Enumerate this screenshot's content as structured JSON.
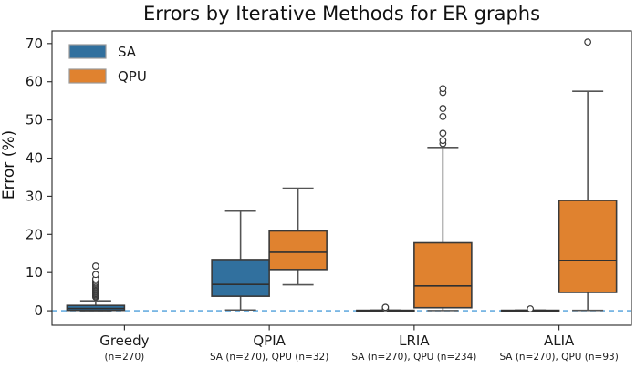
{
  "chart_data": {
    "type": "boxplot",
    "title": "Errors by Iterative Methods for ER graphs",
    "ylabel": "Error (%)",
    "yticks": [
      0,
      10,
      20,
      30,
      40,
      50,
      60,
      70
    ],
    "ylim": [
      -3.8,
      73.3
    ],
    "grid": false,
    "zero_line": {
      "y": 0,
      "style": "dashed",
      "color": "#4F9FDB"
    },
    "legend": {
      "position": "upper-left",
      "entries": [
        {
          "label": "SA",
          "color": "#31709E"
        },
        {
          "label": "QPU",
          "color": "#E0822F"
        }
      ]
    },
    "colors": {
      "box_edge": "#3A3A3A",
      "whisker": "#555555",
      "median": "#303030",
      "frame": "#262626",
      "outlier_edge": "#3A3A3A"
    },
    "categories": [
      {
        "label": "Greedy",
        "sublabel": "(n=270)",
        "boxes": [
          {
            "series": "SA",
            "whisker_low": 0,
            "q1": 0.1,
            "median": 0.6,
            "q3": 1.4,
            "whisker_high": 2.6,
            "outliers": [
              3.6,
              3.9,
              4.2,
              4.5,
              4.8,
              5.1,
              5.4,
              5.7,
              6.0,
              6.3,
              6.6,
              6.9,
              7.2,
              7.5,
              7.9,
              8.3,
              9.5,
              11.7
            ]
          }
        ]
      },
      {
        "label": "QPIA",
        "sublabel": "SA (n=270), QPU (n=32)",
        "boxes": [
          {
            "series": "SA",
            "whisker_low": 0.2,
            "q1": 3.8,
            "median": 6.9,
            "q3": 13.4,
            "whisker_high": 26.1,
            "outliers": []
          },
          {
            "series": "QPU",
            "whisker_low": 6.8,
            "q1": 10.8,
            "median": 15.3,
            "q3": 20.9,
            "whisker_high": 32.1,
            "outliers": []
          }
        ]
      },
      {
        "label": "LRIA",
        "sublabel": "SA (n=270), QPU (n=234)",
        "boxes": [
          {
            "series": "SA",
            "whisker_low": 0,
            "q1": 0,
            "median": 0.05,
            "q3": 0.12,
            "whisker_high": 0.15,
            "outliers": [
              0.5,
              0.9
            ]
          },
          {
            "series": "QPU",
            "whisker_low": 0.05,
            "q1": 0.8,
            "median": 6.5,
            "q3": 17.8,
            "whisker_high": 42.8,
            "outliers": [
              43.8,
              44.6,
              46.5,
              50.9,
              53.0,
              57.2,
              58.2
            ]
          }
        ]
      },
      {
        "label": "ALIA",
        "sublabel": "SA (n=270), QPU (n=93)",
        "boxes": [
          {
            "series": "SA",
            "whisker_low": 0,
            "q1": 0,
            "median": 0.05,
            "q3": 0.12,
            "whisker_high": 0.15,
            "outliers": [
              0.5
            ]
          },
          {
            "series": "QPU",
            "whisker_low": 0.1,
            "q1": 4.8,
            "median": 13.2,
            "q3": 28.9,
            "whisker_high": 57.5,
            "outliers": [
              70.4
            ]
          }
        ]
      }
    ]
  }
}
